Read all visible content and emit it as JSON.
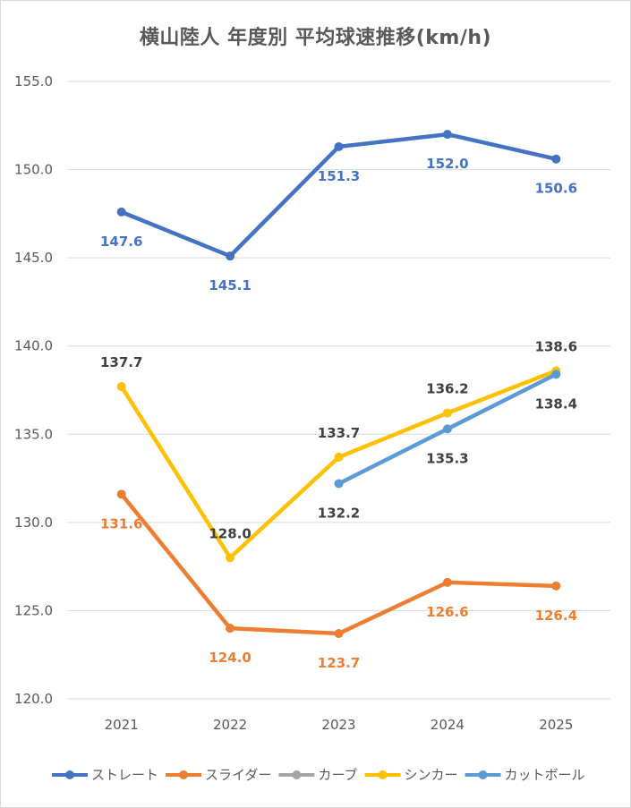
{
  "chart_data": {
    "type": "line",
    "title": "横山陸人 年度別 平均球速推移(km/h)",
    "categories": [
      "2021",
      "2022",
      "2023",
      "2024",
      "2025"
    ],
    "ylim": [
      120.0,
      155.0
    ],
    "ytick_step": 5,
    "y_tick_format": "one-decimal",
    "grid": "horizontal",
    "legend_position": "bottom",
    "series": [
      {
        "name": "ストレート",
        "color": "#4472c4",
        "values": [
          147.6,
          145.1,
          151.3,
          152.0,
          150.6
        ],
        "label_color": "#4472c4",
        "label_placement": "below"
      },
      {
        "name": "スライダー",
        "color": "#ed7d31",
        "values": [
          131.6,
          124.0,
          123.7,
          126.6,
          126.4
        ],
        "label_color": "#ed7d31",
        "label_placement": "below"
      },
      {
        "name": "カーブ",
        "color": "#a5a5a5",
        "values": [
          null,
          null,
          null,
          null,
          null
        ],
        "label_color": "#595959",
        "label_placement": "none"
      },
      {
        "name": "シンカー",
        "color": "#ffc000",
        "values": [
          137.7,
          128.0,
          133.7,
          136.2,
          138.6
        ],
        "label_color": "#404040",
        "label_placement": "above"
      },
      {
        "name": "カットボール",
        "color": "#5b9bd5",
        "values": [
          null,
          null,
          132.2,
          135.3,
          138.4
        ],
        "label_color": "#404040",
        "label_placement": "below"
      }
    ]
  }
}
